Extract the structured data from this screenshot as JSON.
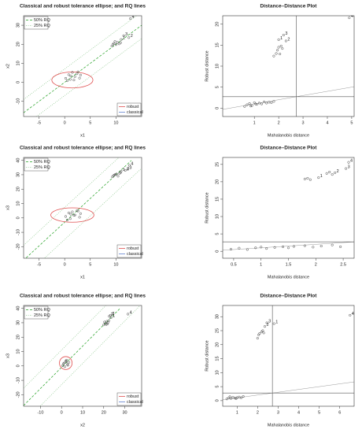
{
  "chart_data": [
    {
      "type": "tolerance",
      "title": "Classical and robust tolerance ellipse; and RQ lines",
      "xlabel": "x1",
      "ylabel": "x2",
      "xlim": [
        -8,
        15
      ],
      "ylim": [
        -18,
        35
      ],
      "xticks": [
        -5,
        0,
        5,
        10
      ],
      "yticks": [
        -10,
        0,
        10,
        20,
        30
      ],
      "points": {
        "x": [
          0.2,
          0.8,
          1.1,
          1.5,
          2.0,
          2.4,
          2.9,
          0.5,
          1.8,
          3.1,
          1.2,
          2.6,
          9.2,
          9.6,
          10.0,
          10.3,
          10.6,
          9.8,
          10.9,
          9.4
        ],
        "y": [
          2.1,
          4.0,
          1.5,
          5.2,
          3.0,
          4.5,
          2.2,
          0.8,
          1.2,
          3.8,
          3.3,
          5.5,
          19.1,
          20.4,
          19.8,
          21.0,
          20.2,
          21.5,
          20.8,
          20.0
        ]
      },
      "labeled": {
        "labels": [
          "1",
          "2",
          "3",
          "4"
        ],
        "x": [
          11.0,
          12.5,
          11.5,
          12.8
        ],
        "y": [
          22.5,
          23.5,
          24.5,
          33.5
        ]
      },
      "lines": [
        {
          "name": "50% RQ",
          "color": "#22a022",
          "dash": "3,2",
          "segments": [
            {
              "x": [
                -8,
                15
              ],
              "y": [
                -16,
                30
              ]
            }
          ]
        },
        {
          "name": "25% RQ",
          "color": "#8fc88f",
          "dash": "1,1.5",
          "segments": [
            {
              "x": [
                -8,
                15
              ],
              "y": [
                -9,
                37
              ]
            },
            {
              "x": [
                -8,
                15
              ],
              "y": [
                -23,
                23
              ]
            }
          ]
        }
      ],
      "ellipses": [
        {
          "name": "robust",
          "color": "#e05050",
          "cx": 1.5,
          "cy": 1.2,
          "rx": 4,
          "ry": 4.2
        },
        {
          "name": "classical",
          "color": "#6080d0"
        }
      ]
    },
    {
      "type": "dd",
      "title": "Distance–Distance Plot",
      "xlabel": "Mahalanobis distance",
      "ylabel": "Robust distance",
      "xlim": [
        -0.3,
        5.1
      ],
      "ylim": [
        -2,
        22
      ],
      "xticks": [
        1,
        2,
        3,
        4,
        5
      ],
      "yticks": [
        0,
        5,
        10,
        15,
        20
      ],
      "cutoff": 2.72,
      "points": {
        "x": [
          0.6,
          0.7,
          0.8,
          0.9,
          1.0,
          1.1,
          1.2,
          1.3,
          1.4,
          1.5,
          1.6,
          1.7,
          1.8,
          0.85,
          1.05,
          1.8,
          1.9,
          2.0,
          2.1,
          1.95,
          2.05,
          2.15
        ],
        "y": [
          0.4,
          0.8,
          1.1,
          0.6,
          1.3,
          0.9,
          1.2,
          1.0,
          1.5,
          1.2,
          1.4,
          1.3,
          1.6,
          0.5,
          1.0,
          12.4,
          13.0,
          14.5,
          14.8,
          13.8,
          12.9,
          14.2
        ]
      },
      "labeled": {
        "labels": [
          "1",
          "2",
          "3",
          "4"
        ],
        "x": [
          2.0,
          2.3,
          2.2,
          4.9
        ],
        "y": [
          16.3,
          16.0,
          17.4,
          21.5
        ]
      }
    },
    {
      "type": "tolerance",
      "title": "Classical and robust tolerance ellipse; and RQ lines",
      "xlabel": "x1",
      "ylabel": "x3",
      "xlim": [
        -8,
        15
      ],
      "ylim": [
        -28,
        42
      ],
      "xticks": [
        -5,
        0,
        5,
        10
      ],
      "yticks": [
        -20,
        -10,
        0,
        10,
        20,
        30,
        40
      ],
      "points": {
        "x": [
          0.2,
          0.8,
          1.1,
          1.5,
          2.0,
          2.4,
          2.9,
          0.5,
          1.8,
          3.1,
          1.2,
          2.6,
          9.3,
          9.7,
          10.1,
          10.4,
          10.7,
          9.9,
          10.9,
          9.5
        ],
        "y": [
          1.0,
          3.5,
          -0.5,
          4.2,
          2.0,
          5.0,
          0.5,
          -1.5,
          1.8,
          3.0,
          2.6,
          4.8,
          28.5,
          29.8,
          30.5,
          29.0,
          31.0,
          30.2,
          31.5,
          29.4
        ]
      },
      "labeled": {
        "labels": [
          "1",
          "2",
          "3",
          "4"
        ],
        "x": [
          11.0,
          11.8,
          12.3,
          12.6
        ],
        "y": [
          32.5,
          33.0,
          33.8,
          36.5
        ]
      },
      "lines": [
        {
          "name": "50% RQ",
          "color": "#22a022",
          "dash": "3,2",
          "segments": [
            {
              "x": [
                -7.5,
                13
              ],
              "y": [
                -27.7,
                39.9
              ]
            }
          ]
        },
        {
          "name": "25% RQ",
          "color": "#8fc88f",
          "dash": "1,1.5",
          "segments": [
            {
              "x": [
                -8,
                13
              ],
              "y": [
                -19,
                50
              ]
            },
            {
              "x": [
                -5,
                15
              ],
              "y": [
                -31.5,
                34.5
              ]
            }
          ]
        }
      ],
      "ellipses": [
        {
          "name": "robust",
          "color": "#e05050",
          "cx": 1.5,
          "cy": 2,
          "rx": 4.2,
          "ry": 5
        },
        {
          "name": "classical",
          "color": "#6080d0"
        }
      ]
    },
    {
      "type": "dd",
      "title": "Distance–Distance Plot",
      "xlabel": "Mahalanobis distance",
      "ylabel": "Robust distance",
      "xlim": [
        0.3,
        2.7
      ],
      "ylim": [
        -2,
        27
      ],
      "xticks": [
        0.5,
        1.0,
        1.5,
        2.0,
        2.5
      ],
      "yticks": [
        0,
        5,
        10,
        15,
        20,
        25
      ],
      "cutoff": 2.72,
      "points": {
        "x": [
          0.45,
          0.6,
          0.75,
          0.9,
          1.0,
          1.1,
          1.25,
          1.4,
          1.5,
          1.6,
          1.8,
          1.95,
          2.1,
          2.3,
          2.45,
          1.8,
          1.85,
          1.9,
          2.2,
          2.25,
          2.3
        ],
        "y": [
          0.6,
          0.9,
          0.5,
          1.0,
          1.2,
          0.8,
          1.1,
          1.3,
          1.0,
          1.4,
          1.6,
          1.2,
          1.5,
          1.8,
          1.3,
          20.8,
          21.0,
          20.6,
          22.4,
          22.8,
          22.1
        ]
      },
      "labeled": {
        "labels": [
          "1",
          "2",
          "3",
          "4"
        ],
        "x": [
          2.05,
          2.35,
          2.55,
          2.6
        ],
        "y": [
          21.2,
          22.6,
          23.8,
          25.6
        ]
      }
    },
    {
      "type": "tolerance",
      "title": "Classical and robust tolerance ellipse; and RQ lines",
      "xlabel": "x2",
      "ylabel": "x3",
      "xlim": [
        -18,
        38
      ],
      "ylim": [
        -28,
        42
      ],
      "xticks": [
        -10,
        0,
        10,
        20,
        30
      ],
      "yticks": [
        -20,
        -10,
        0,
        10,
        20,
        30,
        40
      ],
      "points": {
        "x": [
          0.5,
          1.2,
          2.0,
          2.8,
          3.5,
          1.6,
          2.4,
          3.0,
          0.9,
          2.2,
          20,
          20.8,
          21.5,
          22,
          21.2,
          20.4,
          22.5,
          21.8
        ],
        "y": [
          0.2,
          2.0,
          3.5,
          1.0,
          2.5,
          -0.5,
          4.0,
          0.5,
          1.5,
          2.8,
          28.5,
          29.5,
          31.0,
          30.2,
          28.8,
          30.5,
          31.5,
          29.2
        ]
      },
      "labeled": {
        "labels": [
          "1",
          "2",
          "3",
          "4"
        ],
        "x": [
          23.5,
          22.6,
          23.2,
          31.5
        ],
        "y": [
          33.6,
          34.5,
          35.2,
          36.0
        ]
      },
      "lines": [
        {
          "name": "50% RQ",
          "color": "#22a022",
          "dash": "3,2",
          "segments": [
            {
              "x": [
                -18,
                28
              ],
              "y": [
                -27.5,
                40.3
              ]
            }
          ]
        },
        {
          "name": "25% RQ",
          "color": "#8fc88f",
          "dash": "1,1.5",
          "segments": [
            {
              "x": [
                -18,
                38
              ],
              "y": [
                -15.5,
                67
              ]
            },
            {
              "x": [
                -18,
                38
              ],
              "y": [
                -39.5,
                43
              ]
            }
          ]
        }
      ],
      "ellipses": [
        {
          "name": "robust",
          "color": "#e05050",
          "cx": 2,
          "cy": 2,
          "rx": 3,
          "ry": 4.5
        },
        {
          "name": "classical",
          "color": "#6080d0"
        }
      ]
    },
    {
      "type": "dd",
      "title": "Distance–Distance Plot",
      "xlabel": "Mahalanobis distance",
      "ylabel": "Robust distance",
      "xlim": [
        0.3,
        6.7
      ],
      "ylim": [
        -2,
        34
      ],
      "xticks": [
        1,
        2,
        3,
        4,
        5,
        6
      ],
      "yticks": [
        0,
        5,
        10,
        15,
        20,
        25,
        30
      ],
      "cutoff": 2.72,
      "points": {
        "x": [
          0.5,
          0.6,
          0.7,
          0.8,
          0.9,
          1.0,
          1.1,
          1.2,
          1.3,
          0.65,
          0.95,
          2.0,
          2.05,
          2.1,
          2.2,
          2.25,
          2.3
        ],
        "y": [
          0.6,
          1.0,
          0.8,
          1.2,
          0.9,
          1.1,
          1.3,
          1.0,
          1.5,
          1.4,
          0.7,
          22.3,
          23.5,
          24.0,
          24.6,
          25.0,
          24.2
        ]
      },
      "labeled": {
        "labels": [
          "1",
          "2",
          "3",
          "4"
        ],
        "x": [
          2.8,
          2.35,
          2.45,
          6.5
        ],
        "y": [
          27.5,
          26.5,
          27.8,
          30.5
        ]
      }
    }
  ]
}
